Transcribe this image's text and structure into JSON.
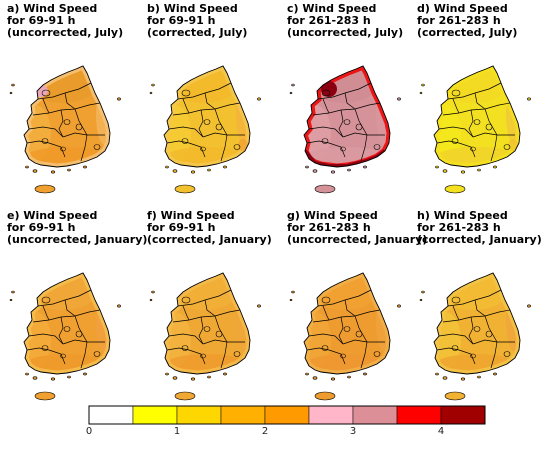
{
  "panels": [
    {
      "id": "a",
      "line1": "a) Wind Speed",
      "line2": "for 69-91 h",
      "line3": "(uncorrected, July)",
      "base": "#f0a030",
      "north": "#e89a2a",
      "west": "#f2b040",
      "south": "#f09a28",
      "east": "#f4b45a",
      "coast": "#f6c47a",
      "hi": "#e9a7b8"
    },
    {
      "id": "b",
      "line1": "b) Wind Speed",
      "line2": "for 69-91 h",
      "line3": "(corrected, July)",
      "base": "#f3c030",
      "north": "#f2b82a",
      "west": "#f5cc34",
      "south": "#f2ba2c",
      "east": "#f2b43c",
      "coast": "#f4c852",
      "hi": "#efa030"
    },
    {
      "id": "c",
      "line1": "c) Wind Speed",
      "line2": "for 261-283 h",
      "line3": "(uncorrected, July)",
      "base": "#d59298",
      "north": "#cf8c92",
      "west": "#dea0a6",
      "south": "#d99aa0",
      "east": "#d8969c",
      "coast": "#f00000",
      "hi": "#8b0010"
    },
    {
      "id": "d",
      "line1": "d) Wind Speed",
      "line2": "for 261-283 h",
      "line3": "(corrected, July)",
      "base": "#f3e020",
      "north": "#f2d824",
      "west": "#f4e81a",
      "south": "#f0d22a",
      "east": "#f1c838",
      "coast": "#f4e020",
      "hi": "#f0c030"
    },
    {
      "id": "e",
      "line1": "e) Wind Speed",
      "line2": "for 69-91 h",
      "line3": "(uncorrected, January)",
      "base": "#f0a030",
      "north": "#f0a838",
      "west": "#f4ac3c",
      "south": "#ee9a2c",
      "east": "#f2a040",
      "coast": "#f4c050",
      "hi": "#eeb0c4"
    },
    {
      "id": "f",
      "line1": "f) Wind Speed",
      "line2": "for 69-91 h",
      "line3": "(corrected, January)",
      "base": "#f0a834",
      "north": "#f2b038",
      "west": "#f3b440",
      "south": "#ef9c2e",
      "east": "#f1a63a",
      "coast": "#f4bc4c",
      "hi": "#eeb2c6"
    },
    {
      "id": "g",
      "line1": "g) Wind Speed",
      "line2": "for 261-283 h",
      "line3": "(uncorrected, January)",
      "base": "#ee9c30",
      "north": "#f0a232",
      "west": "#f2a83a",
      "south": "#ee9630",
      "east": "#f0a23c",
      "coast": "#f1b04a",
      "hi": "#eeb0c6"
    },
    {
      "id": "h",
      "line1": "h) Wind Speed",
      "line2": "for 261-283 h",
      "line3": "(corrected, January)",
      "base": "#f1b234",
      "north": "#f2bc34",
      "west": "#f3c43a",
      "south": "#efa430",
      "east": "#f0a63c",
      "coast": "#f3c448",
      "hi": "#eeb2c6"
    }
  ],
  "colorbar": {
    "bins": [
      "#ffffff",
      "#ffff00",
      "#ffd700",
      "#ffb000",
      "#ff9a00",
      "#ffb6c8",
      "#dd8f98",
      "#ff0000",
      "#a00000"
    ],
    "ticks": [
      "0",
      "1",
      "2",
      "3",
      "4"
    ],
    "tick_values": [
      0,
      1,
      2,
      3,
      4
    ],
    "range": [
      0,
      4.5
    ],
    "bin_width": 0.5
  }
}
